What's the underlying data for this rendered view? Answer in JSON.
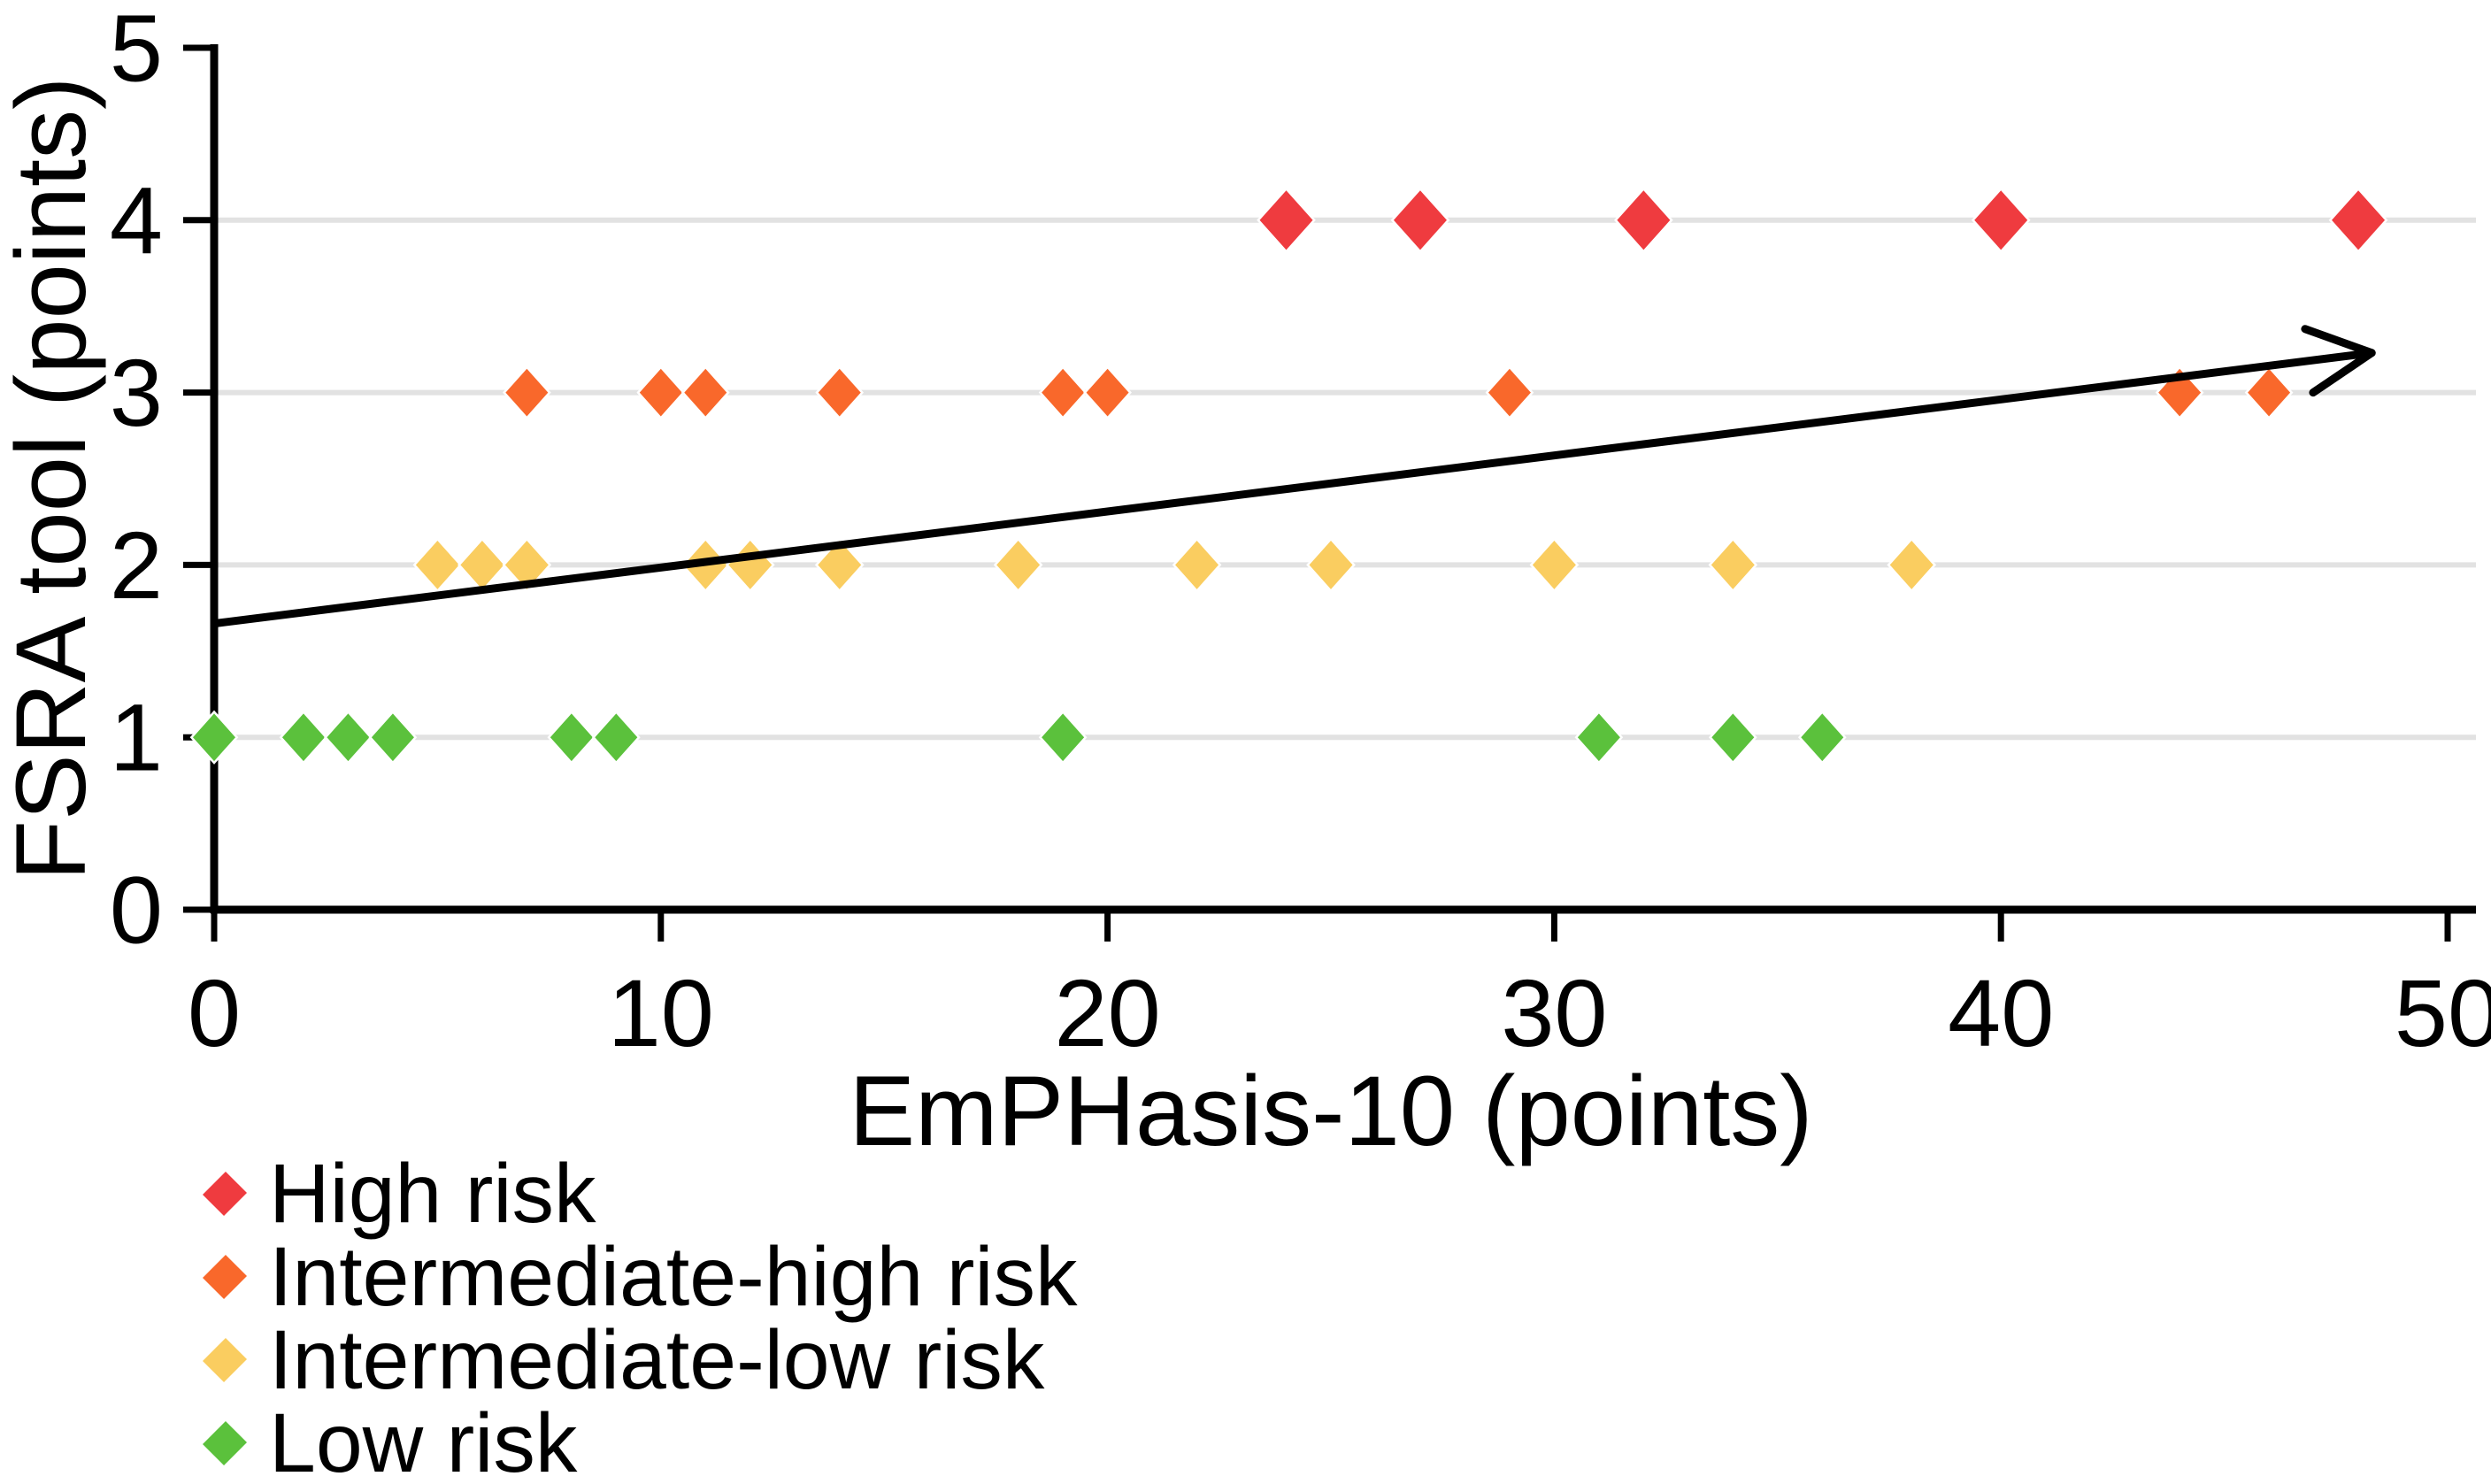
{
  "chart_data": {
    "type": "scatter",
    "title": "",
    "xlabel": "EmPHasis-10 (points)",
    "ylabel": "FSRA tool (points)",
    "xlim": [
      0,
      50
    ],
    "ylim": [
      0,
      5
    ],
    "x_ticks": [
      0,
      10,
      20,
      30,
      40,
      50
    ],
    "y_ticks": [
      0,
      1,
      2,
      3,
      4,
      5
    ],
    "gridline_y_values": [
      1,
      2,
      3,
      4
    ],
    "grid": "horizontal-only",
    "legend_position": "bottom-left",
    "axis_color": "#000000",
    "gridline_color": "#e2e2e2",
    "background_color": "#ffffff",
    "series": [
      {
        "name": "High risk",
        "color": "#ef3b3f",
        "marker": "diamond",
        "marker_width": 60,
        "y": 4,
        "x": [
          24,
          27,
          32,
          40,
          48
        ]
      },
      {
        "name": "Intermediate-high risk",
        "color": "#f9682b",
        "marker": "diamond",
        "marker_width": 48,
        "y": 3,
        "x": [
          7,
          10,
          11,
          14,
          19,
          20,
          29,
          44,
          46
        ]
      },
      {
        "name": "Intermediate-low risk",
        "color": "#facd60",
        "marker": "diamond",
        "marker_width": 49,
        "y": 2,
        "x": [
          5,
          6,
          7,
          11,
          12,
          14,
          18,
          22,
          25,
          30,
          34,
          38
        ]
      },
      {
        "name": "Low risk",
        "color": "#5bc13c",
        "marker": "diamond",
        "marker_width": 48,
        "y": 1,
        "x": [
          0,
          2,
          3,
          4,
          8,
          9,
          19,
          31,
          34,
          36
        ]
      }
    ],
    "trend_arrow": {
      "x1": 0,
      "y1": 1.66,
      "x2": 48.3,
      "y2": 3.23,
      "color": "#000000",
      "style": "arrow-end"
    }
  }
}
